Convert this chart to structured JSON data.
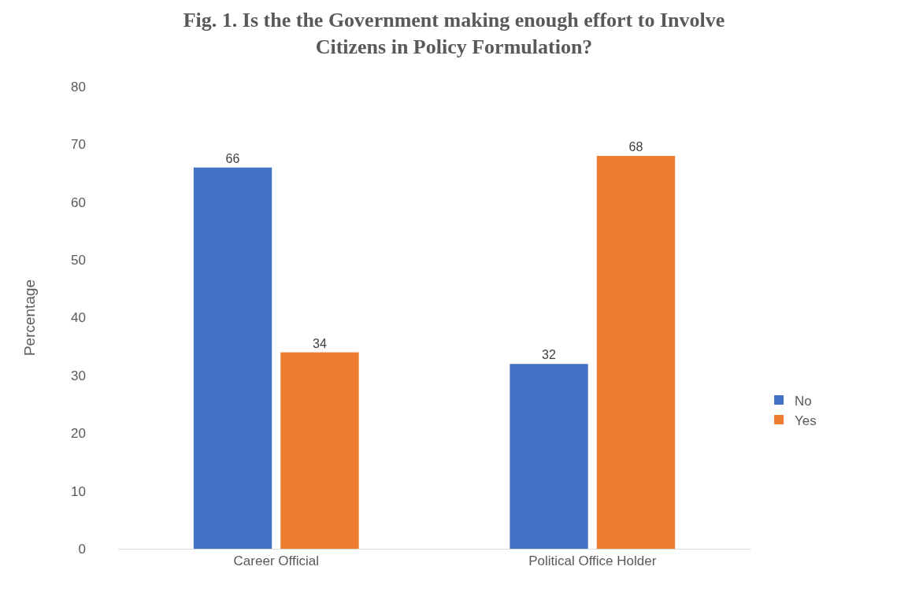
{
  "chart_data": {
    "type": "bar",
    "title": "Fig. 1. Is the the Government making enough effort to Involve\nCitizens in Policy Formulation?",
    "ylabel": "Percentage",
    "categories": [
      "Career Official",
      "Political Office Holder"
    ],
    "series": [
      {
        "name": "No",
        "color": "#4472c4",
        "values": [
          66,
          32
        ]
      },
      {
        "name": "Yes",
        "color": "#ed7d31",
        "values": [
          34,
          68
        ]
      }
    ],
    "ylim": [
      0,
      80
    ],
    "yticks": [
      0,
      10,
      20,
      30,
      40,
      50,
      60,
      70,
      80
    ],
    "data_labels": true,
    "grid": false,
    "legend": "right"
  }
}
